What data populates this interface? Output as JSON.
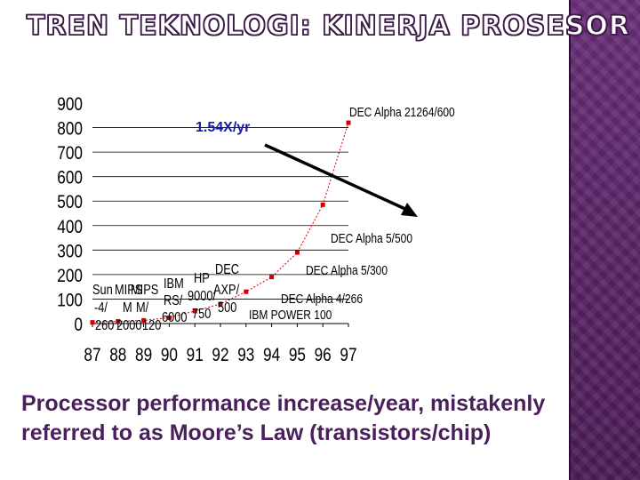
{
  "slide": {
    "title": "TREN TEKNOLOGI: KINERJA PROSESOR",
    "caption_lines": [
      "Processor performance increase/year, mistakenly",
      "referred to as Moore’s Law (transistors/chip)"
    ]
  },
  "colors": {
    "band": "#5a2467",
    "caption": "#4a1f5c",
    "series": "#d00000",
    "growth_label": "#1a1aa8"
  },
  "chart_data": {
    "type": "line",
    "title": "",
    "xlabel": "",
    "ylabel": "",
    "x_ticks": [
      "87",
      "88",
      "89",
      "90",
      "91",
      "92",
      "93",
      "94",
      "95",
      "96",
      "97"
    ],
    "y_ticks": [
      "0",
      "100",
      "200",
      "300",
      "400",
      "500",
      "600",
      "700",
      "800",
      "900"
    ],
    "xlim": [
      87,
      97
    ],
    "ylim": [
      0,
      900
    ],
    "grid": "horizontal",
    "series": [
      {
        "points": [
          {
            "x": 87,
            "y": 5
          },
          {
            "x": 88,
            "y": 9
          },
          {
            "x": 89,
            "y": 13
          },
          {
            "x": 90,
            "y": 24
          },
          {
            "x": 91,
            "y": 51
          },
          {
            "x": 92,
            "y": 80
          },
          {
            "x": 93,
            "y": 130
          },
          {
            "x": 94,
            "y": 190
          },
          {
            "x": 95,
            "y": 290
          },
          {
            "x": 96,
            "y": 485
          },
          {
            "x": 97,
            "y": 820
          }
        ]
      }
    ],
    "annotations": [
      {
        "text": "DEC Alpha 21264/600"
      },
      {
        "text": "DEC Alpha 5/500"
      },
      {
        "text": "DEC Alpha 5/300"
      },
      {
        "text": "DEC Alpha 4/266"
      },
      {
        "text": "IBM POWER 100"
      },
      {
        "text": "DEC"
      },
      {
        "text": "AXP/"
      },
      {
        "text": "500"
      },
      {
        "text": "HP"
      },
      {
        "text": "9000/"
      },
      {
        "text": "750"
      },
      {
        "text": "IBM"
      },
      {
        "text": "RS/"
      },
      {
        "text": "6000"
      },
      {
        "text": "MIPS"
      },
      {
        "text": "M/"
      },
      {
        "text": "120"
      },
      {
        "text": "MIPS"
      },
      {
        "text": "M"
      },
      {
        "text": "2000"
      },
      {
        "text": "Sun"
      },
      {
        "text": "-4/"
      },
      {
        "text": "260"
      }
    ],
    "growth_label": "1.54X/yr"
  }
}
